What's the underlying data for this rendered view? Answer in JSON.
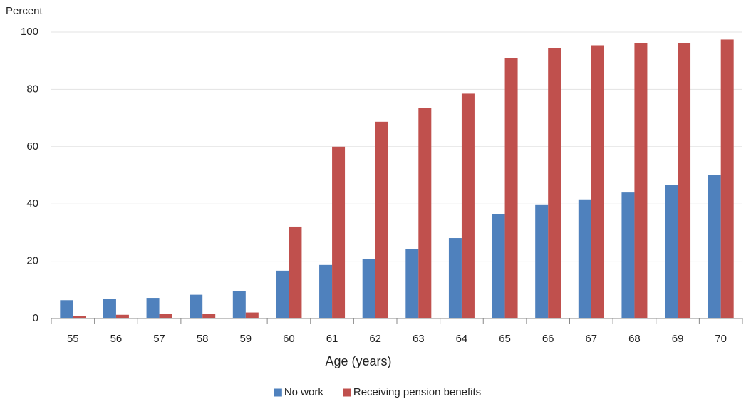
{
  "chart_data": {
    "type": "bar",
    "y_label": "Percent",
    "x_label": "Age (years)",
    "categories": [
      "55",
      "56",
      "57",
      "58",
      "59",
      "60",
      "61",
      "62",
      "63",
      "64",
      "65",
      "66",
      "67",
      "68",
      "69",
      "70"
    ],
    "series": [
      {
        "name": "No work",
        "color": "#4f81bd",
        "values": [
          6.4,
          6.8,
          7.2,
          8.3,
          9.6,
          16.7,
          18.7,
          20.7,
          24.2,
          28.1,
          36.5,
          39.6,
          41.6,
          44.0,
          46.6,
          50.2
        ]
      },
      {
        "name": "Receiving pension benefits",
        "color": "#c0504d",
        "values": [
          0.9,
          1.3,
          1.7,
          1.7,
          2.1,
          32.1,
          60.0,
          68.7,
          73.5,
          78.5,
          90.8,
          94.3,
          95.4,
          96.2,
          96.2,
          97.4
        ]
      }
    ],
    "ylim": [
      0,
      100
    ],
    "yticks": [
      0,
      20,
      40,
      60,
      80,
      100
    ],
    "grid": true,
    "legend": "bottom"
  }
}
